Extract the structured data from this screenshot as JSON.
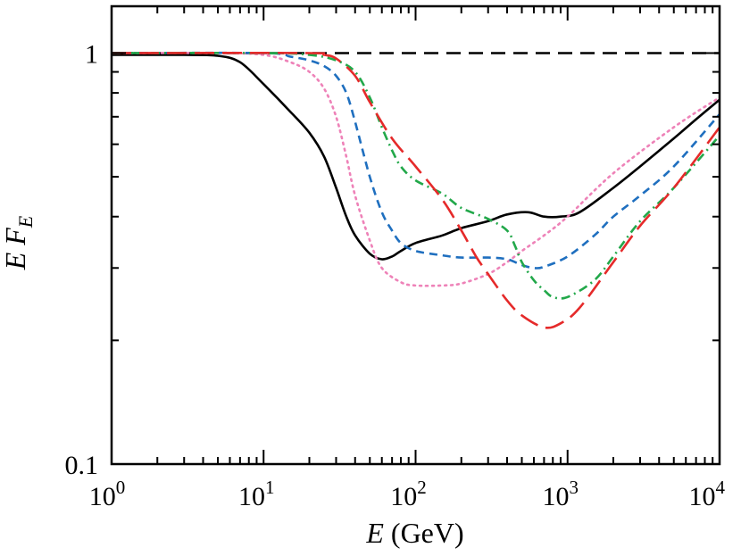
{
  "chart_data": {
    "type": "line",
    "title": "",
    "xlabel": {
      "var": "E",
      "unit": " (GeV)"
    },
    "ylabel": {
      "main": "E F",
      "sub": "E"
    },
    "x_scale": "log",
    "y_scale": "log",
    "xlim": [
      1,
      10000
    ],
    "ylim": [
      0.1,
      1.3
    ],
    "x_ticks": [
      {
        "value": 1,
        "base": "10",
        "exp": "0"
      },
      {
        "value": 10,
        "base": "10",
        "exp": "1"
      },
      {
        "value": 100,
        "base": "10",
        "exp": "2"
      },
      {
        "value": 1000,
        "base": "10",
        "exp": "3"
      },
      {
        "value": 10000,
        "base": "10",
        "exp": "4"
      }
    ],
    "y_ticks": [
      {
        "value": 0.1,
        "label": "0.1"
      },
      {
        "value": 1,
        "label": "1"
      }
    ],
    "grid": false,
    "legend": "none",
    "reference_line": {
      "y": 1,
      "style": "dashed",
      "color": "#000000"
    },
    "series": [
      {
        "color": "#000000",
        "style": "solid",
        "points": [
          [
            1,
            0.99
          ],
          [
            3,
            0.99
          ],
          [
            5,
            0.985
          ],
          [
            7,
            0.95
          ],
          [
            10,
            0.84
          ],
          [
            15,
            0.72
          ],
          [
            20,
            0.64
          ],
          [
            25,
            0.56
          ],
          [
            30,
            0.47
          ],
          [
            35,
            0.4
          ],
          [
            40,
            0.36
          ],
          [
            50,
            0.325
          ],
          [
            60,
            0.315
          ],
          [
            70,
            0.32
          ],
          [
            80,
            0.33
          ],
          [
            100,
            0.345
          ],
          [
            150,
            0.36
          ],
          [
            200,
            0.375
          ],
          [
            300,
            0.39
          ],
          [
            400,
            0.405
          ],
          [
            550,
            0.41
          ],
          [
            700,
            0.4
          ],
          [
            900,
            0.4
          ],
          [
            1200,
            0.41
          ],
          [
            2000,
            0.47
          ],
          [
            3000,
            0.53
          ],
          [
            5000,
            0.62
          ],
          [
            7000,
            0.69
          ],
          [
            10000,
            0.77
          ]
        ]
      },
      {
        "color": "#ee82b8",
        "style": "dotted",
        "points": [
          [
            1,
            1
          ],
          [
            5,
            1
          ],
          [
            10,
            0.99
          ],
          [
            15,
            0.95
          ],
          [
            20,
            0.9
          ],
          [
            25,
            0.82
          ],
          [
            30,
            0.7
          ],
          [
            35,
            0.56
          ],
          [
            40,
            0.45
          ],
          [
            50,
            0.35
          ],
          [
            60,
            0.3
          ],
          [
            80,
            0.277
          ],
          [
            100,
            0.272
          ],
          [
            150,
            0.272
          ],
          [
            200,
            0.275
          ],
          [
            300,
            0.29
          ],
          [
            400,
            0.31
          ],
          [
            500,
            0.33
          ],
          [
            700,
            0.36
          ],
          [
            1000,
            0.4
          ],
          [
            2000,
            0.51
          ],
          [
            5000,
            0.66
          ],
          [
            10000,
            0.78
          ]
        ]
      },
      {
        "color": "#1f6fbf",
        "style": "dashed",
        "points": [
          [
            1,
            1
          ],
          [
            10,
            1
          ],
          [
            15,
            0.98
          ],
          [
            20,
            0.96
          ],
          [
            25,
            0.93
          ],
          [
            30,
            0.88
          ],
          [
            35,
            0.8
          ],
          [
            40,
            0.68
          ],
          [
            50,
            0.5
          ],
          [
            60,
            0.41
          ],
          [
            70,
            0.37
          ],
          [
            80,
            0.345
          ],
          [
            100,
            0.33
          ],
          [
            150,
            0.322
          ],
          [
            200,
            0.318
          ],
          [
            300,
            0.318
          ],
          [
            400,
            0.315
          ],
          [
            500,
            0.305
          ],
          [
            600,
            0.3
          ],
          [
            700,
            0.302
          ],
          [
            1000,
            0.32
          ],
          [
            1500,
            0.36
          ],
          [
            2000,
            0.4
          ],
          [
            3000,
            0.45
          ],
          [
            5000,
            0.53
          ],
          [
            10000,
            0.71
          ]
        ]
      },
      {
        "color": "#22a84a",
        "style": "dash-dot",
        "points": [
          [
            1,
            1
          ],
          [
            10,
            1
          ],
          [
            20,
            0.99
          ],
          [
            30,
            0.96
          ],
          [
            40,
            0.9
          ],
          [
            50,
            0.78
          ],
          [
            60,
            0.66
          ],
          [
            70,
            0.58
          ],
          [
            80,
            0.53
          ],
          [
            100,
            0.49
          ],
          [
            150,
            0.455
          ],
          [
            200,
            0.42
          ],
          [
            300,
            0.395
          ],
          [
            400,
            0.37
          ],
          [
            450,
            0.34
          ],
          [
            500,
            0.31
          ],
          [
            600,
            0.28
          ],
          [
            700,
            0.265
          ],
          [
            800,
            0.255
          ],
          [
            1000,
            0.255
          ],
          [
            1500,
            0.28
          ],
          [
            2000,
            0.32
          ],
          [
            3000,
            0.39
          ],
          [
            5000,
            0.47
          ],
          [
            10000,
            0.63
          ]
        ]
      },
      {
        "color": "#e52a2a",
        "style": "long-dash",
        "points": [
          [
            1,
            1
          ],
          [
            20,
            1
          ],
          [
            25,
            0.99
          ],
          [
            30,
            0.97
          ],
          [
            40,
            0.88
          ],
          [
            50,
            0.76
          ],
          [
            70,
            0.62
          ],
          [
            100,
            0.53
          ],
          [
            150,
            0.44
          ],
          [
            200,
            0.37
          ],
          [
            250,
            0.32
          ],
          [
            300,
            0.29
          ],
          [
            400,
            0.25
          ],
          [
            500,
            0.23
          ],
          [
            700,
            0.215
          ],
          [
            900,
            0.22
          ],
          [
            1200,
            0.24
          ],
          [
            2000,
            0.31
          ],
          [
            3000,
            0.38
          ],
          [
            5000,
            0.47
          ],
          [
            10000,
            0.66
          ]
        ]
      }
    ]
  }
}
